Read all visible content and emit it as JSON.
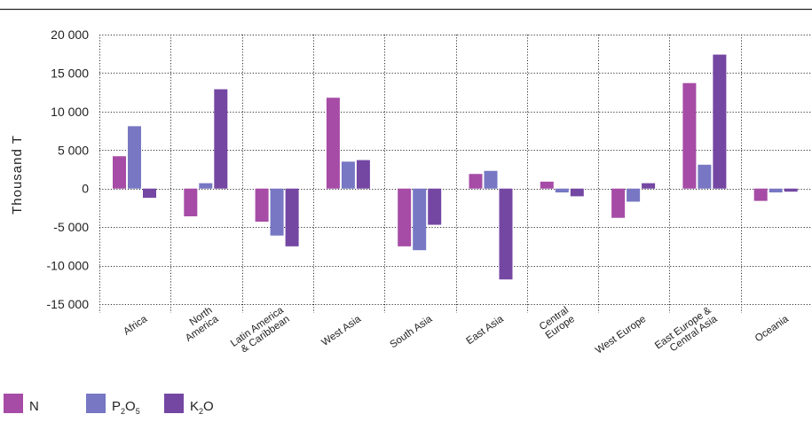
{
  "chart_data": {
    "type": "bar",
    "ylabel": "Thousand T",
    "ylim": [
      -15000,
      20000
    ],
    "yticks": [
      20000,
      15000,
      10000,
      5000,
      0,
      -5000,
      -10000,
      -15000
    ],
    "ytick_labels": [
      "20 000",
      "15 000",
      "10 000",
      "5 000",
      "0",
      "-5 000",
      "-10 000",
      "-15 000"
    ],
    "grid": true,
    "legend_position": "bottom-left",
    "categories": [
      [
        "Africa"
      ],
      [
        "North",
        "America"
      ],
      [
        "Latin America",
        "& Caribbean"
      ],
      [
        "West Asia"
      ],
      [
        "South Asia"
      ],
      [
        "East Asia"
      ],
      [
        "Central",
        "Europe"
      ],
      [
        "West Europe"
      ],
      [
        "East Europe &",
        "Central Asia"
      ],
      [
        "Oceania"
      ]
    ],
    "series": [
      {
        "name": "N",
        "name_sub": "",
        "name_tail": "",
        "color": "#a64ca6",
        "values": [
          4200,
          -3600,
          -4300,
          11800,
          -7500,
          1900,
          900,
          -3800,
          13700,
          -1600
        ]
      },
      {
        "name": "P",
        "name_sub": "2",
        "name_tail": "O",
        "name_sub2": "5",
        "color": "#7777c4",
        "values": [
          8100,
          700,
          -6100,
          3500,
          -8000,
          2300,
          -500,
          -1700,
          3100,
          -500
        ]
      },
      {
        "name": "K",
        "name_sub": "2",
        "name_tail": "O",
        "name_sub2": "",
        "color": "#7447a3",
        "values": [
          -1200,
          12900,
          -7500,
          3700,
          -4700,
          -11800,
          -1000,
          700,
          17400,
          -400
        ]
      }
    ]
  }
}
